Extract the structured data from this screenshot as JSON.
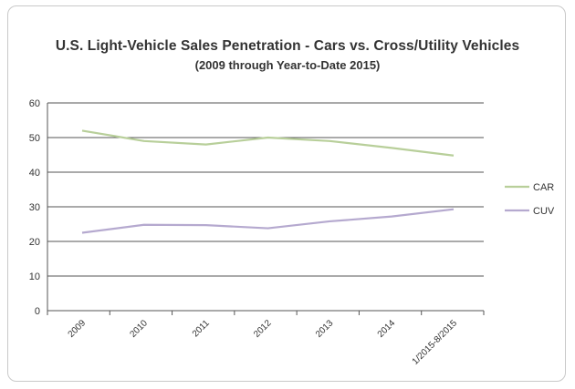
{
  "chart_data": {
    "type": "line",
    "title": "U.S. Light-Vehicle Sales Penetration - Cars vs. Cross/Utility Vehicles",
    "subtitle": "(2009 through Year-to-Date 2015)",
    "xlabel": "",
    "ylabel": "",
    "categories": [
      "2009",
      "2010",
      "2011",
      "2012",
      "2013",
      "2014",
      "1/2015-8/2015"
    ],
    "ylim": [
      0,
      60
    ],
    "yticks": [
      "0",
      "10",
      "20",
      "30",
      "40",
      "50",
      "60"
    ],
    "grid": true,
    "legend_position": "right",
    "series": [
      {
        "name": "CAR",
        "color": "#b8cf9a",
        "values": [
          52,
          49,
          48,
          50,
          49,
          47,
          44.8
        ]
      },
      {
        "name": "CUV",
        "color": "#b5a9cf",
        "values": [
          22.5,
          24.8,
          24.7,
          23.8,
          25.8,
          27.2,
          29.3
        ]
      }
    ]
  }
}
